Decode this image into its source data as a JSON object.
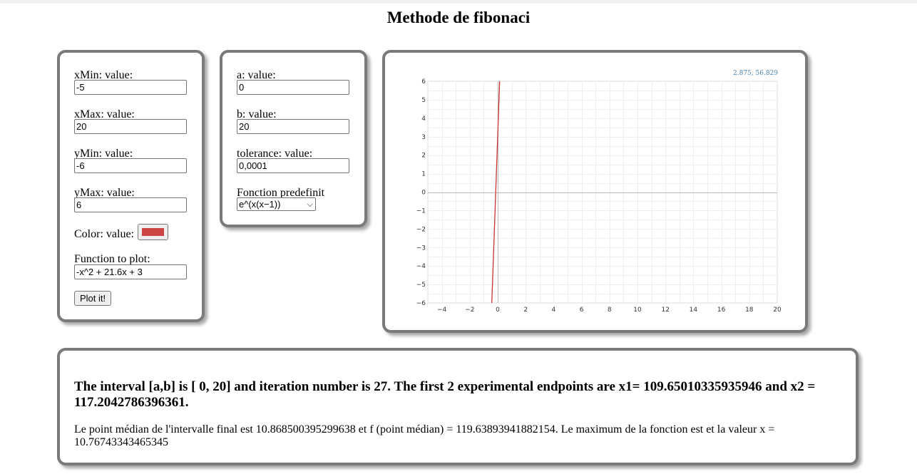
{
  "page": {
    "title": "Methode de fibonaci"
  },
  "plot_form": {
    "xmin_label": "xMin: value:",
    "xmin_value": "-5",
    "xmax_label": "xMax: value:",
    "xmax_value": "20",
    "ymin_label": "yMin: value:",
    "ymin_value": "-6",
    "ymax_label": "yMax: value:",
    "ymax_value": "6",
    "color_label": "Color: value:",
    "color_value": "#cc4444",
    "function_label": "Function to plot:",
    "function_value": "-x^2 + 21.6x + 3",
    "plot_button": "Plot it!"
  },
  "method_form": {
    "a_label": "a: value:",
    "a_value": "0",
    "b_label": "b: value:",
    "b_value": "20",
    "tolerance_label": "tolerance: value:",
    "tolerance_value": "0,0001",
    "predef_label": "Fonction predefinit",
    "predef_selected": "e^(x(x−1))"
  },
  "graph": {
    "coord_readout": "2.875, 56.829",
    "line_color": "#cc3333"
  },
  "chart_data": {
    "type": "line",
    "xlim": [
      -5,
      20
    ],
    "ylim": [
      -6,
      6
    ],
    "x_ticks": [
      "−4",
      "−2",
      "0",
      "2",
      "4",
      "6",
      "8",
      "10",
      "12",
      "14",
      "16",
      "18",
      "20"
    ],
    "x_tick_values": [
      -4,
      -2,
      0,
      2,
      4,
      6,
      8,
      10,
      12,
      14,
      16,
      18,
      20
    ],
    "y_ticks": [
      "6",
      "5",
      "4",
      "3",
      "2",
      "1",
      "0",
      "−1",
      "−2",
      "−3",
      "−4",
      "−5",
      "−6"
    ],
    "y_tick_values": [
      6,
      5,
      4,
      3,
      2,
      1,
      0,
      -1,
      -2,
      -3,
      -4,
      -5,
      -6
    ],
    "grid": true,
    "series": [
      {
        "function": "-x^2 + 21.6x + 3",
        "x": [
          -0.4246,
          0.1384
        ],
        "y": [
          -6,
          6
        ]
      }
    ]
  },
  "result": {
    "headline": "The interval [a,b] is [ 0, 20] and iteration number is 27. The first 2 experimental endpoints are x1= 109.65010335935946 and x2 = 117.2042786396361.",
    "detail": "Le point médian de l'intervalle final est 10.868500395299638 et f (point médian) = 119.63893941882154. Le maximum de la fonction est et la valeur x = 10.76743343465345"
  }
}
